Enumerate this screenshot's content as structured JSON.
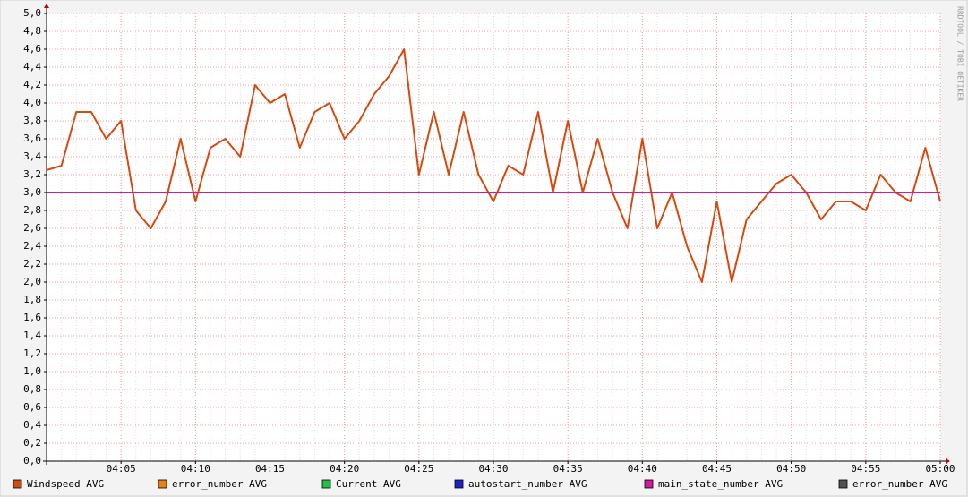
{
  "chart_data": {
    "type": "line",
    "watermark": "RRDTOOL / TOBI OETIKER",
    "x": [
      "04:00",
      "04:01",
      "04:02",
      "04:03",
      "04:04",
      "04:05",
      "04:06",
      "04:07",
      "04:08",
      "04:09",
      "04:10",
      "04:11",
      "04:12",
      "04:13",
      "04:14",
      "04:15",
      "04:16",
      "04:17",
      "04:18",
      "04:19",
      "04:20",
      "04:21",
      "04:22",
      "04:23",
      "04:24",
      "04:25",
      "04:26",
      "04:27",
      "04:28",
      "04:29",
      "04:30",
      "04:31",
      "04:32",
      "04:33",
      "04:34",
      "04:35",
      "04:36",
      "04:37",
      "04:38",
      "04:39",
      "04:40",
      "04:41",
      "04:42",
      "04:43",
      "04:44",
      "04:45",
      "04:46",
      "04:47",
      "04:48",
      "04:49",
      "04:50",
      "04:51",
      "04:52",
      "04:53",
      "04:54",
      "04:55",
      "04:56",
      "04:57",
      "04:58",
      "04:59",
      "05:00"
    ],
    "series": [
      {
        "name": "Windspeed AVG",
        "color": "#d44a10",
        "values": [
          3.25,
          3.3,
          3.9,
          3.9,
          3.6,
          3.8,
          2.8,
          2.6,
          2.9,
          3.6,
          2.9,
          3.5,
          3.6,
          3.4,
          4.2,
          4.0,
          4.1,
          3.5,
          3.9,
          4.0,
          3.6,
          3.8,
          4.1,
          4.3,
          4.6,
          3.2,
          3.9,
          3.2,
          3.9,
          3.2,
          2.9,
          3.3,
          3.2,
          3.9,
          3.0,
          3.8,
          3.0,
          3.6,
          3.0,
          2.6,
          3.6,
          2.6,
          3.0,
          2.4,
          2.0,
          2.9,
          2.0,
          2.7,
          2.9,
          3.1,
          3.2,
          3.0,
          2.7,
          2.9,
          2.9,
          2.8,
          3.2,
          3.0,
          2.9,
          3.5,
          2.9
        ]
      },
      {
        "name": "error_number AVG",
        "color": "#e8801a",
        "values": [
          null,
          null,
          null,
          null,
          null,
          null,
          null,
          null,
          null,
          null,
          null,
          null,
          null,
          null,
          null,
          null,
          null,
          null,
          null,
          null,
          null,
          null,
          null,
          null,
          null,
          null,
          null,
          null,
          null,
          null,
          null,
          null,
          null,
          null,
          null,
          null,
          null,
          null,
          null,
          null,
          null,
          null,
          null,
          null,
          null,
          null,
          null,
          null,
          null,
          null,
          null,
          null,
          null,
          null,
          null,
          null,
          null,
          null,
          null,
          null,
          null
        ]
      },
      {
        "name": "Current AVG",
        "color": "#20c040",
        "values": [
          null,
          null,
          null,
          null,
          null,
          null,
          null,
          null,
          null,
          null,
          null,
          null,
          null,
          null,
          null,
          null,
          null,
          null,
          null,
          null,
          null,
          null,
          null,
          null,
          null,
          null,
          null,
          null,
          null,
          null,
          null,
          null,
          null,
          null,
          null,
          null,
          null,
          null,
          null,
          null,
          null,
          null,
          null,
          null,
          null,
          null,
          null,
          null,
          null,
          null,
          null,
          null,
          null,
          null,
          null,
          null,
          null,
          null,
          null,
          null,
          null
        ]
      },
      {
        "name": "autostart_number AVG",
        "color": "#2020c8",
        "values": [
          null,
          null,
          null,
          null,
          null,
          null,
          null,
          null,
          null,
          null,
          null,
          null,
          null,
          null,
          null,
          null,
          null,
          null,
          null,
          null,
          null,
          null,
          null,
          null,
          null,
          null,
          null,
          null,
          null,
          null,
          null,
          null,
          null,
          null,
          null,
          null,
          null,
          null,
          null,
          null,
          null,
          null,
          null,
          null,
          null,
          null,
          null,
          null,
          null,
          null,
          null,
          null,
          null,
          null,
          null,
          null,
          null,
          null,
          null,
          null,
          null
        ]
      },
      {
        "name": "main_state_number AVG",
        "color": "#d01aa0",
        "values": [
          3,
          3,
          3,
          3,
          3,
          3,
          3,
          3,
          3,
          3,
          3,
          3,
          3,
          3,
          3,
          3,
          3,
          3,
          3,
          3,
          3,
          3,
          3,
          3,
          3,
          3,
          3,
          3,
          3,
          3,
          3,
          3,
          3,
          3,
          3,
          3,
          3,
          3,
          3,
          3,
          3,
          3,
          3,
          3,
          3,
          3,
          3,
          3,
          3,
          3,
          3,
          3,
          3,
          3,
          3,
          3,
          3,
          3,
          3,
          3,
          3
        ]
      },
      {
        "name": "error_number AVG",
        "color": "#505050",
        "values": [
          null,
          null,
          null,
          null,
          null,
          null,
          null,
          null,
          null,
          null,
          null,
          null,
          null,
          null,
          null,
          null,
          null,
          null,
          null,
          null,
          null,
          null,
          null,
          null,
          null,
          null,
          null,
          null,
          null,
          null,
          null,
          null,
          null,
          null,
          null,
          null,
          null,
          null,
          null,
          null,
          null,
          null,
          null,
          null,
          null,
          null,
          null,
          null,
          null,
          null,
          null,
          null,
          null,
          null,
          null,
          null,
          null,
          null,
          null,
          null,
          null
        ]
      }
    ],
    "xlim": [
      "04:00",
      "05:00"
    ],
    "xticks": [
      "04:05",
      "04:10",
      "04:15",
      "04:20",
      "04:25",
      "04:30",
      "04:35",
      "04:40",
      "04:45",
      "04:50",
      "04:55",
      "05:00"
    ],
    "ylim": [
      0,
      5
    ],
    "yticks": [
      {
        "value": 0,
        "label": "0,0"
      },
      {
        "value": 0.2,
        "label": "0,2"
      },
      {
        "value": 0.4,
        "label": "0,4"
      },
      {
        "value": 0.6,
        "label": "0,6"
      },
      {
        "value": 0.8,
        "label": "0,8"
      },
      {
        "value": 1,
        "label": "1,0"
      },
      {
        "value": 1.2,
        "label": "1,2"
      },
      {
        "value": 1.4,
        "label": "1,4"
      },
      {
        "value": 1.6,
        "label": "1,6"
      },
      {
        "value": 1.8,
        "label": "1,8"
      },
      {
        "value": 2,
        "label": "2,0"
      },
      {
        "value": 2.2,
        "label": "2,2"
      },
      {
        "value": 2.4,
        "label": "2,4"
      },
      {
        "value": 2.6,
        "label": "2,6"
      },
      {
        "value": 2.8,
        "label": "2,8"
      },
      {
        "value": 3,
        "label": "3,0"
      },
      {
        "value": 3.2,
        "label": "3,2"
      },
      {
        "value": 3.4,
        "label": "3,4"
      },
      {
        "value": 3.6,
        "label": "3,6"
      },
      {
        "value": 3.8,
        "label": "3,8"
      },
      {
        "value": 4,
        "label": "4,0"
      },
      {
        "value": 4.2,
        "label": "4,2"
      },
      {
        "value": 4.4,
        "label": "4,4"
      },
      {
        "value": 4.6,
        "label": "4,6"
      },
      {
        "value": 4.8,
        "label": "4,8"
      },
      {
        "value": 5,
        "label": "5,0"
      }
    ],
    "grid": true
  }
}
